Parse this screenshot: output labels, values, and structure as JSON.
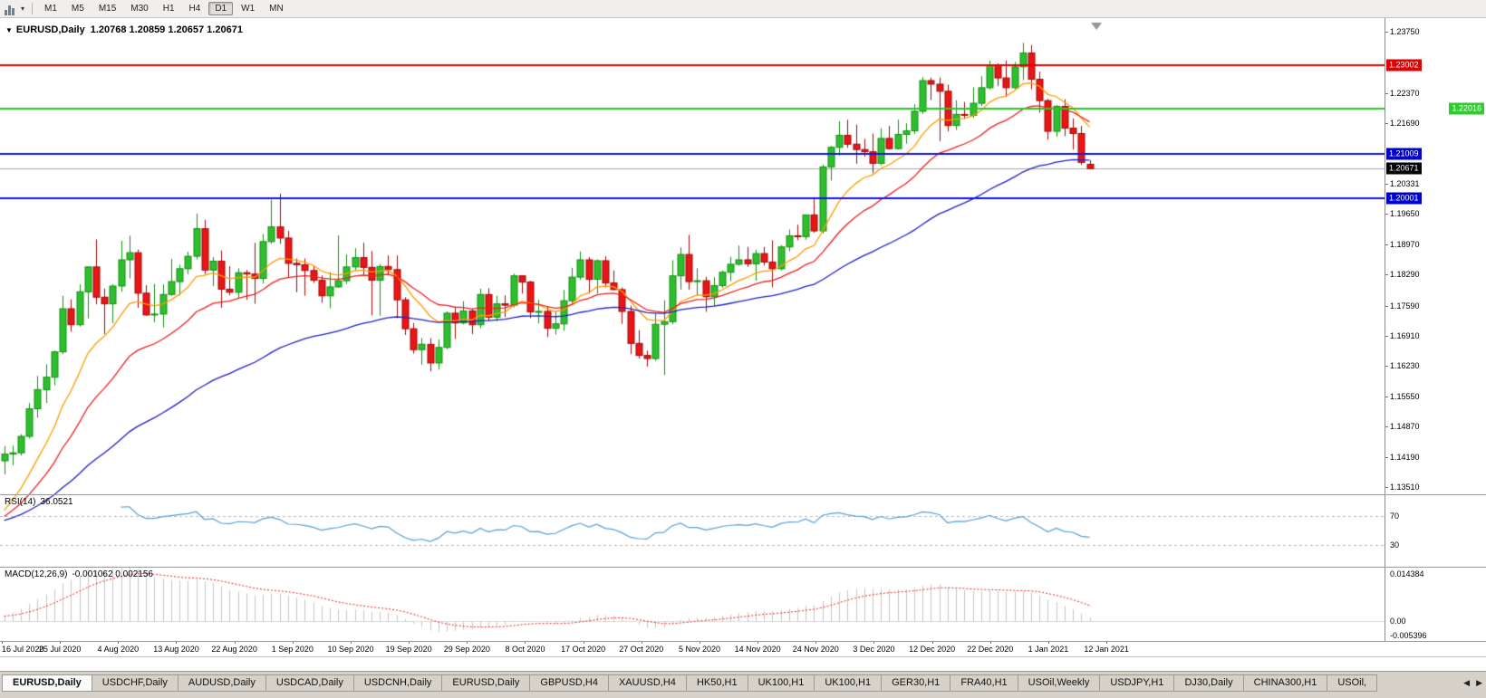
{
  "toolbar": {
    "timeframes": [
      "M1",
      "M5",
      "M15",
      "M30",
      "H1",
      "H4",
      "D1",
      "W1",
      "MN"
    ],
    "active_timeframe": "D1"
  },
  "chart": {
    "symbol_period": "EURUSD,Daily",
    "ohlc": "1.20768 1.20859 1.20657 1.20671",
    "collapse_icon": "▼"
  },
  "price_axis": {
    "ticks": [
      "1.23750",
      "1.22370",
      "1.21690",
      "1.20331",
      "1.19650",
      "1.18970",
      "1.18290",
      "1.17590",
      "1.16910",
      "1.16230",
      "1.15550",
      "1.14870",
      "1.14190",
      "1.13510"
    ],
    "badges": [
      {
        "label": "1.23002",
        "price": 1.23002,
        "bg": "#e00000",
        "fg": "#ffffff",
        "align": "left",
        "name": "resistance-price-badge"
      },
      {
        "label": "1.22016",
        "price": 1.22016,
        "bg": "#2ecc2e",
        "fg": "#ffffff",
        "align": "right",
        "name": "green-level-price-badge"
      },
      {
        "label": "1.21009",
        "price": 1.21009,
        "bg": "#0000cc",
        "fg": "#ffffff",
        "align": "left",
        "name": "blue-level-price-badge"
      },
      {
        "label": "1.20671",
        "price": 1.20671,
        "bg": "#000000",
        "fg": "#ffffff",
        "align": "left",
        "name": "bid-price-badge"
      },
      {
        "label": "1.20001",
        "price": 1.20001,
        "bg": "#0000cc",
        "fg": "#ffffff",
        "align": "left",
        "name": "blue-level-price-badge"
      }
    ]
  },
  "levels": [
    {
      "price": 1.23002,
      "color": "#ee0000",
      "width": 2
    },
    {
      "price": 1.22016,
      "color": "#22cc22",
      "width": 2
    },
    {
      "price": 1.21009,
      "color": "#1414e6",
      "width": 2
    },
    {
      "price": 1.20001,
      "color": "#1414e6",
      "width": 2
    }
  ],
  "bid_line": {
    "price": 1.20671,
    "color": "#a8a8a8"
  },
  "rsi": {
    "label": "RSI(14)",
    "value": "36.0521",
    "period": 14,
    "axis_labels": [
      "70",
      "30"
    ],
    "levels": [
      70,
      30
    ],
    "color": "#58a0d8"
  },
  "macd": {
    "label": "MACD(12,26,9)",
    "values": "-0.001062 0.002156",
    "fast": 12,
    "slow": 26,
    "signal": 9,
    "axis_labels": [
      "0.014384",
      "0.00",
      "-0.005396"
    ],
    "ylim": [
      -0.005396,
      0.014384
    ],
    "hist_color": "#c6c6c6",
    "signal_color": "#ee2222"
  },
  "colors": {
    "candle_up": "#2ebe2e",
    "candle_up_edge": "#129112",
    "candle_down": "#ea1515",
    "candle_down_edge": "#9e0b0b",
    "shift_marker": "#979797",
    "zero_line": "#dcdcdc",
    "rsi_dash": "#b8b8b8"
  },
  "tabs": {
    "items": [
      "EURUSD,Daily",
      "USDCHF,Daily",
      "AUDUSD,Daily",
      "USDCAD,Daily",
      "USDCNH,Daily",
      "EURUSD,Daily",
      "GBPUSD,H4",
      "XAUUSD,H4",
      "HK50,H1",
      "UK100,H1",
      "UK100,H1",
      "GER30,H1",
      "FRA40,H1",
      "USOil,Weekly",
      "USDJPY,H1",
      "DJ30,Daily",
      "CHINA300,H1",
      "USOil,"
    ],
    "active_index": 0,
    "scroll_left_icon": "◀",
    "scroll_right_icon": "▶"
  },
  "chart_data": {
    "type": "candlestick",
    "symbol": "EURUSD",
    "timeframe": "Daily",
    "ylim": [
      1.1351,
      1.2375
    ],
    "ema_seed": 1.127,
    "x_labels": [
      "16 Jul 2020",
      "25 Jul 2020",
      "4 Aug 2020",
      "13 Aug 2020",
      "22 Aug 2020",
      "1 Sep 2020",
      "10 Sep 2020",
      "19 Sep 2020",
      "29 Sep 2020",
      "8 Oct 2020",
      "17 Oct 2020",
      "27 Oct 2020",
      "5 Nov 2020",
      "14 Nov 2020",
      "24 Nov 2020",
      "3 Dec 2020",
      "12 Dec 2020",
      "22 Dec 2020",
      "1 Jan 2021",
      "12 Jan 2021"
    ],
    "moving_averages": [
      {
        "name": "fast",
        "period": 10,
        "method": "ema",
        "color": "#ff9c00"
      },
      {
        "name": "medium",
        "period": 20,
        "method": "ema",
        "color": "#f02020"
      },
      {
        "name": "slow",
        "period": 50,
        "method": "ema",
        "color": "#2020c8"
      }
    ],
    "candles": [
      [
        1.141,
        1.1443,
        1.138,
        1.1425
      ],
      [
        1.1425,
        1.1444,
        1.14,
        1.1428
      ],
      [
        1.1428,
        1.147,
        1.1422,
        1.1465
      ],
      [
        1.1465,
        1.154,
        1.146,
        1.1527
      ],
      [
        1.1527,
        1.1601,
        1.1507,
        1.157
      ],
      [
        1.157,
        1.1627,
        1.154,
        1.1598
      ],
      [
        1.1598,
        1.1658,
        1.158,
        1.1655
      ],
      [
        1.1655,
        1.1781,
        1.165,
        1.1752
      ],
      [
        1.1752,
        1.1773,
        1.17,
        1.1716
      ],
      [
        1.1716,
        1.1807,
        1.1712,
        1.179
      ],
      [
        1.179,
        1.1847,
        1.173,
        1.1846
      ],
      [
        1.1846,
        1.1908,
        1.1762,
        1.1778
      ],
      [
        1.1778,
        1.1797,
        1.1695,
        1.1763
      ],
      [
        1.1763,
        1.1807,
        1.172,
        1.1803
      ],
      [
        1.1803,
        1.1905,
        1.179,
        1.1862
      ],
      [
        1.1862,
        1.1916,
        1.182,
        1.1878
      ],
      [
        1.1878,
        1.1885,
        1.1754,
        1.1787
      ],
      [
        1.1787,
        1.1805,
        1.1736,
        1.1738
      ],
      [
        1.1738,
        1.1808,
        1.1722,
        1.174
      ],
      [
        1.174,
        1.1807,
        1.171,
        1.1784
      ],
      [
        1.1784,
        1.1864,
        1.1781,
        1.1813
      ],
      [
        1.1813,
        1.1851,
        1.1782,
        1.1842
      ],
      [
        1.1842,
        1.188,
        1.183,
        1.187
      ],
      [
        1.187,
        1.1966,
        1.1863,
        1.1932
      ],
      [
        1.1932,
        1.1952,
        1.183,
        1.1839
      ],
      [
        1.1839,
        1.1868,
        1.1803,
        1.1859
      ],
      [
        1.1859,
        1.1883,
        1.1754,
        1.1796
      ],
      [
        1.1796,
        1.1848,
        1.1782,
        1.1789
      ],
      [
        1.1789,
        1.1843,
        1.1775,
        1.1833
      ],
      [
        1.1833,
        1.1839,
        1.1772,
        1.183
      ],
      [
        1.183,
        1.19,
        1.1763,
        1.182
      ],
      [
        1.182,
        1.192,
        1.1809,
        1.1903
      ],
      [
        1.1903,
        1.1997,
        1.1898,
        1.1936
      ],
      [
        1.1936,
        1.2011,
        1.1898,
        1.1911
      ],
      [
        1.1911,
        1.1927,
        1.1822,
        1.1854
      ],
      [
        1.1854,
        1.1865,
        1.1789,
        1.1851
      ],
      [
        1.1851,
        1.1865,
        1.1781,
        1.1838
      ],
      [
        1.1838,
        1.1848,
        1.181,
        1.1816
      ],
      [
        1.1816,
        1.1827,
        1.1765,
        1.1781
      ],
      [
        1.1781,
        1.1834,
        1.1753,
        1.1801
      ],
      [
        1.1801,
        1.1917,
        1.1799,
        1.1815
      ],
      [
        1.1815,
        1.1874,
        1.1808,
        1.1846
      ],
      [
        1.1846,
        1.1888,
        1.1839,
        1.1867
      ],
      [
        1.1867,
        1.19,
        1.1829,
        1.1845
      ],
      [
        1.1845,
        1.1882,
        1.1737,
        1.1816
      ],
      [
        1.1816,
        1.1852,
        1.1736,
        1.1847
      ],
      [
        1.1847,
        1.1872,
        1.1827,
        1.184
      ],
      [
        1.184,
        1.1872,
        1.1731,
        1.1772
      ],
      [
        1.1772,
        1.1778,
        1.1693,
        1.1707
      ],
      [
        1.1707,
        1.172,
        1.1651,
        1.166
      ],
      [
        1.166,
        1.1686,
        1.1626,
        1.1672
      ],
      [
        1.1672,
        1.1686,
        1.1611,
        1.163
      ],
      [
        1.163,
        1.1683,
        1.1615,
        1.1665
      ],
      [
        1.1665,
        1.1746,
        1.1661,
        1.1742
      ],
      [
        1.1742,
        1.1754,
        1.1684,
        1.172
      ],
      [
        1.172,
        1.1769,
        1.1717,
        1.1747
      ],
      [
        1.1747,
        1.1752,
        1.1695,
        1.1716
      ],
      [
        1.1716,
        1.1797,
        1.1708,
        1.1784
      ],
      [
        1.1784,
        1.1798,
        1.1725,
        1.1733
      ],
      [
        1.1733,
        1.1781,
        1.1724,
        1.1763
      ],
      [
        1.1763,
        1.1782,
        1.1733,
        1.176
      ],
      [
        1.176,
        1.1831,
        1.1755,
        1.1826
      ],
      [
        1.1826,
        1.1827,
        1.1786,
        1.1812
      ],
      [
        1.1812,
        1.1815,
        1.1731,
        1.1745
      ],
      [
        1.1745,
        1.1772,
        1.1719,
        1.1746
      ],
      [
        1.1746,
        1.1758,
        1.1688,
        1.1708
      ],
      [
        1.1708,
        1.1747,
        1.1694,
        1.1718
      ],
      [
        1.1718,
        1.1794,
        1.1703,
        1.177
      ],
      [
        1.177,
        1.1844,
        1.176,
        1.1823
      ],
      [
        1.1823,
        1.1881,
        1.1817,
        1.1862
      ],
      [
        1.1862,
        1.1868,
        1.1786,
        1.1818
      ],
      [
        1.1818,
        1.1863,
        1.1786,
        1.186
      ],
      [
        1.186,
        1.187,
        1.18,
        1.181
      ],
      [
        1.181,
        1.1838,
        1.1794,
        1.1795
      ],
      [
        1.1795,
        1.18,
        1.1718,
        1.1746
      ],
      [
        1.1746,
        1.1759,
        1.165,
        1.1674
      ],
      [
        1.1674,
        1.1704,
        1.164,
        1.1647
      ],
      [
        1.1647,
        1.1658,
        1.1622,
        1.164
      ],
      [
        1.164,
        1.1741,
        1.1635,
        1.1717
      ],
      [
        1.1717,
        1.1771,
        1.1603,
        1.1723
      ],
      [
        1.1723,
        1.1861,
        1.1717,
        1.1826
      ],
      [
        1.1826,
        1.189,
        1.1795,
        1.1874
      ],
      [
        1.1874,
        1.1918,
        1.1795,
        1.1813
      ],
      [
        1.1813,
        1.1843,
        1.1781,
        1.1815
      ],
      [
        1.1815,
        1.1824,
        1.1745,
        1.1779
      ],
      [
        1.1779,
        1.1823,
        1.1757,
        1.1804
      ],
      [
        1.1804,
        1.1838,
        1.1799,
        1.1834
      ],
      [
        1.1834,
        1.1869,
        1.1814,
        1.1852
      ],
      [
        1.1852,
        1.1894,
        1.1849,
        1.1862
      ],
      [
        1.1862,
        1.1891,
        1.1846,
        1.1853
      ],
      [
        1.1853,
        1.1885,
        1.1815,
        1.1876
      ],
      [
        1.1876,
        1.1891,
        1.1849,
        1.1857
      ],
      [
        1.1857,
        1.1906,
        1.18,
        1.1842
      ],
      [
        1.1842,
        1.1895,
        1.1838,
        1.1891
      ],
      [
        1.1891,
        1.193,
        1.1881,
        1.1916
      ],
      [
        1.1916,
        1.1941,
        1.1906,
        1.1914
      ],
      [
        1.1914,
        1.1963,
        1.1907,
        1.1963
      ],
      [
        1.1963,
        1.2003,
        1.1923,
        1.1927
      ],
      [
        1.1927,
        1.2076,
        1.1921,
        1.2071
      ],
      [
        1.2071,
        1.2118,
        1.204,
        1.2115
      ],
      [
        1.2115,
        1.2174,
        1.2097,
        1.2142
      ],
      [
        1.2142,
        1.2177,
        1.2114,
        1.2122
      ],
      [
        1.2122,
        1.2166,
        1.2078,
        1.211
      ],
      [
        1.211,
        1.2134,
        1.2094,
        1.2105
      ],
      [
        1.2105,
        1.2146,
        1.2057,
        1.2079
      ],
      [
        1.2079,
        1.2158,
        1.2075,
        1.2135
      ],
      [
        1.2135,
        1.2163,
        1.211,
        1.2112
      ],
      [
        1.2112,
        1.2177,
        1.211,
        1.2144
      ],
      [
        1.2144,
        1.2169,
        1.2123,
        1.2152
      ],
      [
        1.2152,
        1.2212,
        1.2145,
        1.2196
      ],
      [
        1.2196,
        1.2273,
        1.219,
        1.2265
      ],
      [
        1.2265,
        1.2272,
        1.2221,
        1.2257
      ],
      [
        1.2257,
        1.2272,
        1.2129,
        1.2241
      ],
      [
        1.2241,
        1.2256,
        1.2151,
        1.2164
      ],
      [
        1.2164,
        1.2221,
        1.2154,
        1.2189
      ],
      [
        1.2189,
        1.2217,
        1.2179,
        1.2187
      ],
      [
        1.2187,
        1.225,
        1.2181,
        1.2214
      ],
      [
        1.2214,
        1.2275,
        1.2208,
        1.2249
      ],
      [
        1.2249,
        1.231,
        1.2245,
        1.2299
      ],
      [
        1.2299,
        1.2304,
        1.2253,
        1.2271
      ],
      [
        1.2271,
        1.231,
        1.2228,
        1.2249
      ],
      [
        1.2249,
        1.2307,
        1.2246,
        1.2296
      ],
      [
        1.2296,
        1.235,
        1.2266,
        1.2327
      ],
      [
        1.2327,
        1.2345,
        1.2245,
        1.2268
      ],
      [
        1.2268,
        1.2285,
        1.2193,
        1.222
      ],
      [
        1.222,
        1.2224,
        1.2132,
        1.2151
      ],
      [
        1.2151,
        1.221,
        1.2139,
        1.2207
      ],
      [
        1.2207,
        1.2223,
        1.214,
        1.2158
      ],
      [
        1.2158,
        1.218,
        1.211,
        1.2146
      ],
      [
        1.2146,
        1.2163,
        1.2075,
        1.2081
      ],
      [
        1.20768,
        1.20859,
        1.20657,
        1.20671
      ]
    ]
  }
}
